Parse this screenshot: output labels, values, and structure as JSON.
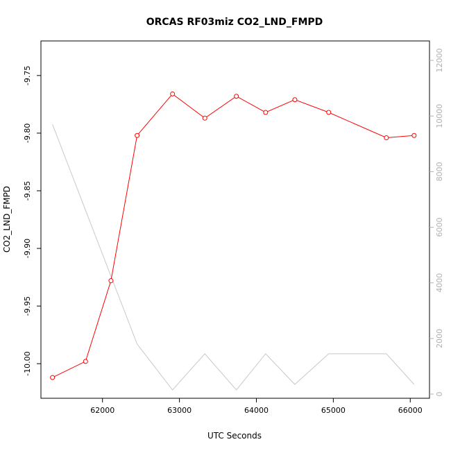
{
  "chart_data": {
    "type": "line",
    "title": "ORCAS RF03miz CO2_LND_FMPD",
    "xlabel": "UTC Seconds",
    "ylabel": "CO2_LND_FMPD",
    "xlim": [
      61200,
      66250
    ],
    "ylim": [
      -10.03,
      -9.72
    ],
    "y2lim": [
      -150,
      12700
    ],
    "x_ticks": [
      62000,
      63000,
      64000,
      65000,
      66000
    ],
    "y_ticks": [
      -10.0,
      -9.95,
      -9.9,
      -9.85,
      -9.8,
      -9.75
    ],
    "y_tick_labels": [
      "-10.00",
      "-9.95",
      "-9.90",
      "-9.85",
      "-9.80",
      "-9.75"
    ],
    "y2_ticks": [
      0,
      2000,
      4000,
      6000,
      8000,
      10000,
      12000
    ],
    "grid": false,
    "series": [
      {
        "axis": "left",
        "color": "#ff0000",
        "markers": "open-circle",
        "x": [
          61350,
          61780,
          62110,
          62450,
          62910,
          63330,
          63740,
          64120,
          64500,
          64940,
          65690,
          66050
        ],
        "y": [
          -10.012,
          -9.998,
          -9.928,
          -9.802,
          -9.766,
          -9.787,
          -9.768,
          -9.782,
          -9.771,
          -9.782,
          -9.804,
          -9.802
        ]
      },
      {
        "axis": "right",
        "color": "#c8c8c8",
        "markers": "none",
        "x": [
          61350,
          62450,
          62910,
          63330,
          63740,
          64120,
          64500,
          64940,
          65690,
          66050
        ],
        "y": [
          9700,
          1800,
          150,
          1450,
          150,
          1450,
          350,
          1450,
          1450,
          350
        ]
      }
    ]
  }
}
